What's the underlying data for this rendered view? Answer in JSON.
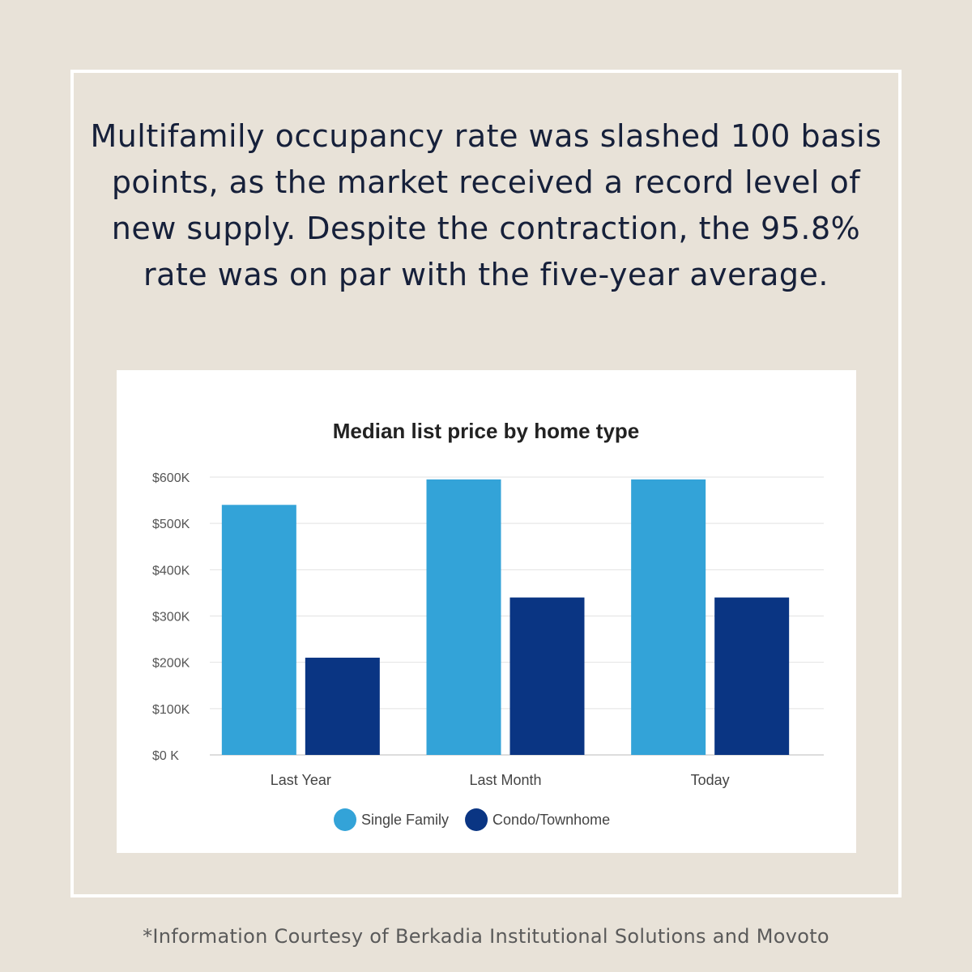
{
  "headline": "Multifamily occupancy rate was slashed 100 basis points, as the market received a record level of new supply. Despite the contraction, the 95.8% rate was on par with the five-year average.",
  "footer": "*Information Courtesy of Berkadia Institutional Solutions and Movoto",
  "chart_data": {
    "type": "bar",
    "title": "Median list price by home type",
    "xlabel": "",
    "ylabel": "",
    "categories": [
      "Last Year",
      "Last Month",
      "Today"
    ],
    "series": [
      {
        "name": "Single Family",
        "values": [
          540000,
          595000,
          595000
        ],
        "color": "#33a3d8"
      },
      {
        "name": "Condo/Townhome",
        "values": [
          210000,
          340000,
          340000
        ],
        "color": "#0a3583"
      }
    ],
    "ylim": [
      0,
      600000
    ],
    "yticks": [
      0,
      100000,
      200000,
      300000,
      400000,
      500000,
      600000
    ],
    "ytick_labels": [
      "$0 K",
      "$100K",
      "$200K",
      "$300K",
      "$400K",
      "$500K",
      "$600K"
    ],
    "grid": true,
    "legend_position": "bottom"
  }
}
